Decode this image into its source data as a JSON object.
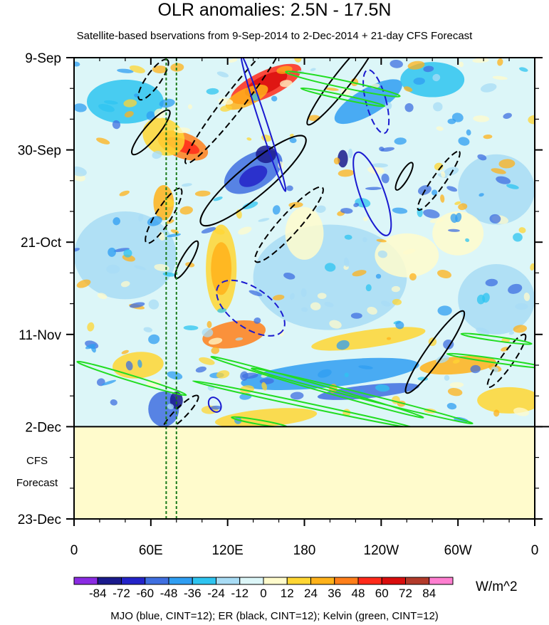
{
  "chart_data": {
    "type": "heatmap",
    "title": "OLR anomalies: 2.5N - 17.5N",
    "subtitle": "Satellite-based bservations from 9-Sep-2014 to 2-Dec-2014 + 21-day CFS Forecast",
    "x_ticks": [
      {
        "label": "0",
        "lon": 0
      },
      {
        "label": "60E",
        "lon": 60
      },
      {
        "label": "120E",
        "lon": 120
      },
      {
        "label": "180",
        "lon": 180
      },
      {
        "label": "120W",
        "lon": 240
      },
      {
        "label": "60W",
        "lon": 300
      },
      {
        "label": "0",
        "lon": 360
      }
    ],
    "y_ticks": [
      {
        "label": "9-Sep",
        "day": 0
      },
      {
        "label": "30-Sep",
        "day": 21
      },
      {
        "label": "21-Oct",
        "day": 42
      },
      {
        "label": "11-Nov",
        "day": 63
      },
      {
        "label": "2-Dec",
        "day": 84
      },
      {
        "label": "23-Dec",
        "day": 105
      }
    ],
    "xlim": [
      0,
      360
    ],
    "ylim_days": [
      0,
      105
    ],
    "observation_end_day": 84,
    "forecast_label": [
      "CFS",
      "Forecast"
    ],
    "reference_lons": [
      72,
      80
    ],
    "colorbar": {
      "labels": [
        "-84",
        "-72",
        "-60",
        "-48",
        "-36",
        "-24",
        "-12",
        "0",
        "12",
        "24",
        "36",
        "48",
        "60",
        "72",
        "84"
      ],
      "colors": [
        "#8a2be2",
        "#1a1a8c",
        "#2323c8",
        "#3f6fe0",
        "#2f9ef2",
        "#2ec4f0",
        "#a8dcf5",
        "#dcf6f8",
        "#fffbcc",
        "#ffd633",
        "#ffb21a",
        "#ff7f1a",
        "#ff2a1a",
        "#d90d0d",
        "#b23a2a",
        "#ff7fd0"
      ],
      "units": "W/m^2"
    },
    "contour_legend": "MJO (blue, CINT=12); ER (black, CINT=12); Kelvin (green, CINT=12)",
    "mjo_contour_color": "#1a1ad0",
    "er_contour_color": "#000000",
    "kelvin_contour_color": "#22dd22"
  }
}
